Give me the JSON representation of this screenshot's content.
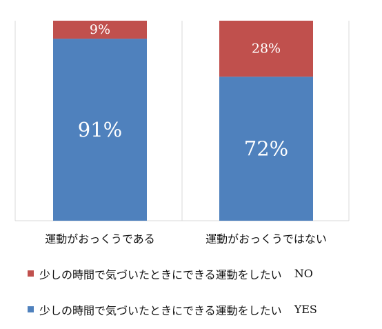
{
  "chart_data": {
    "type": "bar",
    "stacked": true,
    "percent": true,
    "categories": [
      "運動がおっくうである",
      "運動がおっくうではない"
    ],
    "series": [
      {
        "name": "少しの時間で気づいたときにできる運動をしたい",
        "suffix": "YES",
        "color": "#4f81bd",
        "values": [
          91,
          72
        ]
      },
      {
        "name": "少しの時間で気づいたときにできる運動をしたい",
        "suffix": "NO",
        "color": "#c0504d",
        "values": [
          9,
          28
        ]
      }
    ],
    "ylim": [
      0,
      100
    ],
    "grid": false,
    "legend_position": "bottom"
  }
}
